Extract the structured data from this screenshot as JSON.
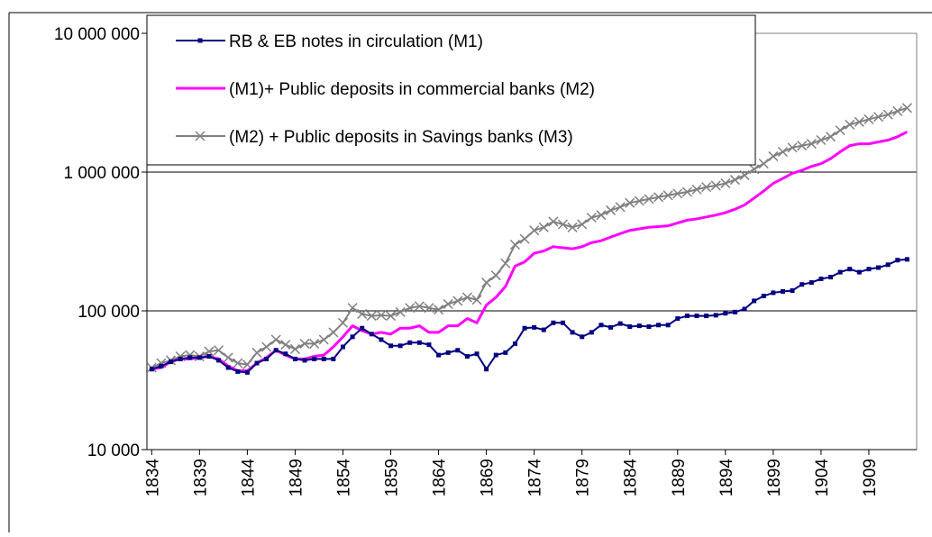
{
  "chart_data": {
    "type": "line",
    "log_scale": true,
    "grid": true,
    "legend": "upper left",
    "x": [
      1834,
      1835,
      1836,
      1837,
      1838,
      1839,
      1840,
      1841,
      1842,
      1843,
      1844,
      1845,
      1846,
      1847,
      1848,
      1849,
      1850,
      1851,
      1852,
      1853,
      1854,
      1855,
      1856,
      1857,
      1858,
      1859,
      1860,
      1861,
      1862,
      1863,
      1864,
      1865,
      1866,
      1867,
      1868,
      1869,
      1870,
      1871,
      1872,
      1873,
      1874,
      1875,
      1876,
      1877,
      1878,
      1879,
      1880,
      1881,
      1882,
      1883,
      1884,
      1885,
      1886,
      1887,
      1888,
      1889,
      1890,
      1891,
      1892,
      1893,
      1894,
      1895,
      1896,
      1897,
      1898,
      1899,
      1900,
      1901,
      1902,
      1903,
      1904,
      1905,
      1906,
      1907,
      1908,
      1909,
      1910,
      1911,
      1912,
      1913
    ],
    "xlim": [
      1833.5,
      1914
    ],
    "xticks": [
      1834,
      1839,
      1844,
      1849,
      1854,
      1859,
      1864,
      1869,
      1874,
      1879,
      1884,
      1889,
      1894,
      1899,
      1904,
      1909
    ],
    "ylim": [
      10000,
      10000000
    ],
    "yticks": [
      {
        "value": 10000,
        "label": "10 000"
      },
      {
        "value": 100000,
        "label": "100 000"
      },
      {
        "value": 1000000,
        "label": "1 000 000"
      },
      {
        "value": 10000000,
        "label": "10 000 000"
      }
    ],
    "series": [
      {
        "name": "RB & EB notes in circulation (M1)",
        "color": "#000080",
        "marker": "square",
        "values": [
          38000,
          40000,
          43000,
          45000,
          46000,
          46000,
          47000,
          44000,
          39000,
          36500,
          36000,
          42000,
          45000,
          52000,
          49000,
          45000,
          44000,
          45000,
          45000,
          45000,
          55000,
          65000,
          75000,
          68000,
          62000,
          56000,
          56000,
          59000,
          59000,
          57000,
          48000,
          50000,
          52000,
          47000,
          49000,
          38000,
          48000,
          50000,
          58000,
          75000,
          76000,
          73000,
          82000,
          82000,
          70000,
          65000,
          70000,
          79000,
          76000,
          81000,
          77000,
          78000,
          77000,
          79000,
          79000,
          88000,
          92000,
          92000,
          92000,
          93000,
          96000,
          98000,
          103000,
          118000,
          128000,
          135000,
          138000,
          140000,
          155000,
          160000,
          170000,
          175000,
          190000,
          200000,
          190000,
          200000,
          205000,
          215000,
          232000,
          235000
        ]
      },
      {
        "name": "(M1)+ Public deposits in commercial banks (M2)",
        "color": "#ff00ff",
        "marker": "none",
        "values": [
          38000,
          39000,
          43000,
          45000,
          45000,
          46000,
          47000,
          45000,
          40000,
          37000,
          37000,
          42000,
          46000,
          52000,
          48000,
          45000,
          45000,
          47000,
          48000,
          55000,
          65000,
          78000,
          72000,
          68000,
          70000,
          68000,
          75000,
          75000,
          78000,
          70000,
          70000,
          78000,
          78000,
          88000,
          82000,
          110000,
          125000,
          150000,
          210000,
          225000,
          260000,
          270000,
          290000,
          285000,
          280000,
          290000,
          310000,
          320000,
          340000,
          360000,
          380000,
          390000,
          400000,
          405000,
          410000,
          430000,
          450000,
          460000,
          475000,
          490000,
          510000,
          540000,
          580000,
          650000,
          730000,
          830000,
          900000,
          980000,
          1030000,
          1100000,
          1150000,
          1250000,
          1400000,
          1550000,
          1600000,
          1600000,
          1650000,
          1700000,
          1800000,
          1950000
        ]
      },
      {
        "name": "(M2) + Public deposits in Savings banks (M3)",
        "color": "#808080",
        "marker": "x",
        "values": [
          39000,
          42000,
          44000,
          47000,
          48000,
          47000,
          51000,
          52000,
          46000,
          42000,
          41000,
          50000,
          55000,
          62000,
          57000,
          53000,
          58000,
          58000,
          62000,
          70000,
          82000,
          105000,
          95000,
          92000,
          93000,
          92000,
          98000,
          105000,
          108000,
          105000,
          102000,
          112000,
          118000,
          125000,
          120000,
          160000,
          180000,
          220000,
          300000,
          330000,
          380000,
          400000,
          440000,
          420000,
          400000,
          420000,
          470000,
          490000,
          530000,
          560000,
          600000,
          620000,
          640000,
          660000,
          680000,
          700000,
          720000,
          750000,
          780000,
          800000,
          830000,
          880000,
          950000,
          1050000,
          1150000,
          1300000,
          1400000,
          1500000,
          1550000,
          1600000,
          1700000,
          1800000,
          2000000,
          2200000,
          2300000,
          2400000,
          2500000,
          2600000,
          2750000,
          2900000
        ]
      }
    ]
  }
}
